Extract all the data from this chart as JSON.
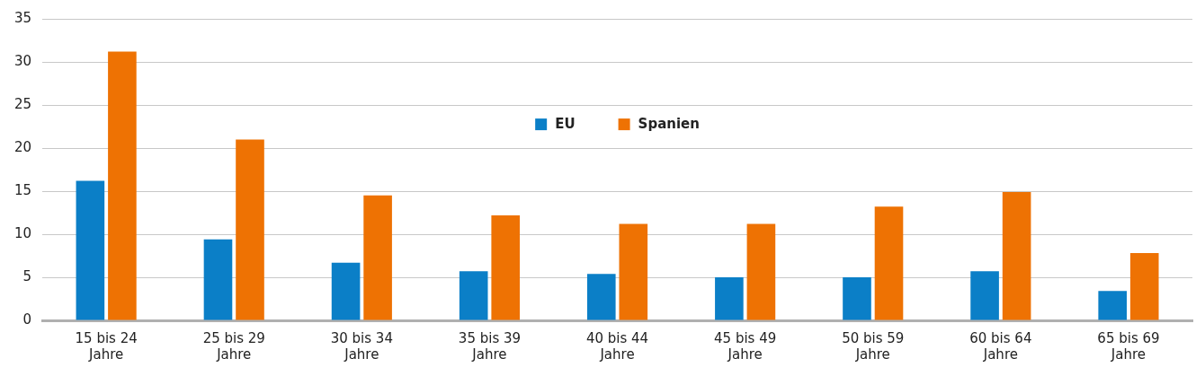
{
  "chart_data": {
    "type": "bar",
    "categories": [
      "15 bis 24 Jahre",
      "25 bis 29 Jahre",
      "30 bis 34 Jahre",
      "35 bis 39 Jahre",
      "40 bis 44 Jahre",
      "45 bis 49 Jahre",
      "50 bis 59 Jahre",
      "60 bis 64 Jahre",
      "65 bis 69 Jahre"
    ],
    "series": [
      {
        "name": "EU",
        "color": "#0b7fc7",
        "values": [
          16.2,
          9.4,
          6.7,
          5.7,
          5.4,
          5.0,
          5.0,
          5.7,
          3.4
        ]
      },
      {
        "name": "Spanien",
        "color": "#ee7203",
        "values": [
          31.2,
          21.0,
          14.5,
          12.2,
          11.2,
          11.2,
          13.2,
          14.9,
          7.8
        ]
      }
    ],
    "ylim": [
      0,
      35
    ],
    "yticks": [
      0,
      5,
      10,
      15,
      20,
      25,
      30,
      35
    ],
    "grid": "y",
    "legend": "top"
  }
}
